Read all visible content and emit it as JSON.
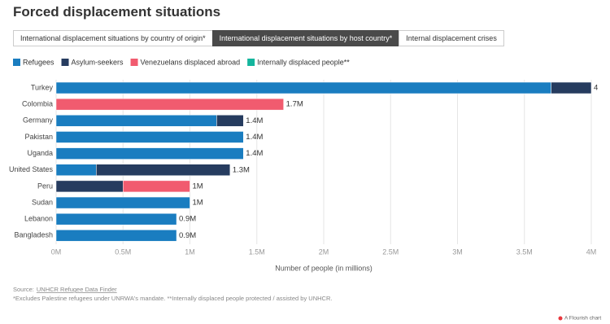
{
  "header": {
    "title": "Forced displacement situations",
    "tabs": [
      "International displacement situations by country of origin*",
      "International displacement situations by host country*",
      "Internal displacement crises"
    ],
    "active_tab": 1
  },
  "chart_data": {
    "type": "stacked_bar_horizontal",
    "categories": [
      "Turkey",
      "Colombia",
      "Germany",
      "Pakistan",
      "Uganda",
      "United States",
      "Peru",
      "Sudan",
      "Lebanon",
      "Bangladesh"
    ],
    "series": [
      {
        "name": "Refugees",
        "color": "#1a7dc0",
        "values": [
          3.7,
          null,
          1.2,
          1.4,
          1.4,
          0.3,
          null,
          1.0,
          0.9,
          0.9
        ]
      },
      {
        "name": "Asylum-seekers",
        "color": "#263c5f",
        "values": [
          0.3,
          null,
          0.2,
          null,
          null,
          1.0,
          0.5,
          null,
          null,
          null
        ]
      },
      {
        "name": "Venezuelans displaced abroad",
        "color": "#f15b6f",
        "values": [
          null,
          1.7,
          null,
          null,
          null,
          null,
          0.5,
          null,
          null,
          null
        ]
      },
      {
        "name": "Internally displaced people**",
        "color": "#14b59d",
        "values": [
          null,
          null,
          null,
          null,
          null,
          null,
          null,
          null,
          null,
          null
        ]
      }
    ],
    "total_labels": [
      "4",
      "1.7M",
      "1.4M",
      "1.4M",
      "1.4M",
      "1.3M",
      "1M",
      "1M",
      "0.9M",
      "0.9M"
    ],
    "xlim": [
      0,
      4
    ],
    "xticks": [
      {
        "value": 0,
        "label": "0M"
      },
      {
        "value": 0.5,
        "label": "0.5M"
      },
      {
        "value": 1,
        "label": "1M"
      },
      {
        "value": 1.5,
        "label": "1.5M"
      },
      {
        "value": 2,
        "label": "2M"
      },
      {
        "value": 2.5,
        "label": "2.5M"
      },
      {
        "value": 3,
        "label": "3M"
      },
      {
        "value": 3.5,
        "label": "3.5M"
      },
      {
        "value": 4,
        "label": "4M"
      }
    ],
    "xlabel": "Number of people (in millions)",
    "grid": true
  },
  "footer": {
    "source_label": "Source:",
    "source_link": "UNHCR Refugee Data Finder",
    "note": "*Excludes Palestine refugees under UNRWA's mandate. **Internally displaced people protected / assisted by UNHCR.",
    "credit": "A Flourish chart"
  }
}
